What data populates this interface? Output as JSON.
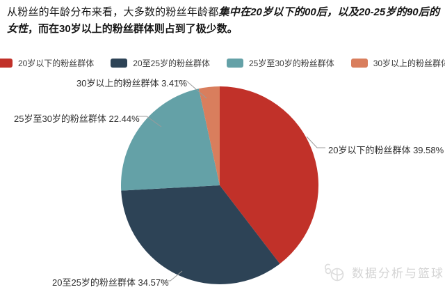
{
  "intro": {
    "normal_prefix": "从粉丝的年龄分布来看，大多数的粉丝年龄都",
    "bold_italic": "集中在20岁以下的00后，以及20-25岁的90后的女性",
    "bold_tail": "，而在30岁以上的粉丝群体则占到了极少数。"
  },
  "legend": {
    "items": [
      {
        "label": "20岁以下的粉丝群体",
        "color": "#c13129"
      },
      {
        "label": "20至25岁的粉丝群体",
        "color": "#2d4356"
      },
      {
        "label": "25岁至30岁的粉丝群体",
        "color": "#64a1a7"
      },
      {
        "label": "30岁以上的粉丝群体",
        "color": "#d97e5d"
      }
    ]
  },
  "chart_data": {
    "type": "pie",
    "title": "",
    "labels": [
      "20岁以下的粉丝群体",
      "20至25岁的粉丝群体",
      "25岁至30岁的粉丝群体",
      "30岁以上的粉丝群体"
    ],
    "values": [
      39.58,
      34.57,
      22.44,
      3.41
    ],
    "unit": "%",
    "colors": [
      "#c13129",
      "#2d4356",
      "#64a1a7",
      "#d97e5d"
    ],
    "start_angle_deg_from_top": 0,
    "direction": "clockwise",
    "legend_position": "top",
    "callouts": [
      {
        "text": "20岁以下的粉丝群体 39.58%"
      },
      {
        "text": "20至25岁的粉丝群体 34.57%"
      },
      {
        "text": "25岁至30岁的粉丝群体 22.44%"
      },
      {
        "text": "30岁以上的粉丝群体 3.41%"
      }
    ]
  },
  "watermark": {
    "text": "数据分析与篮球"
  }
}
